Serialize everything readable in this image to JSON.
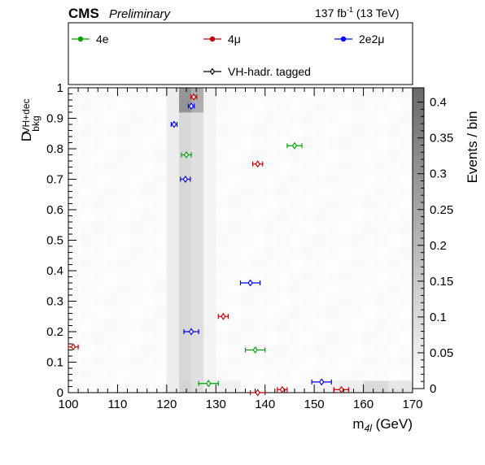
{
  "header": {
    "experiment": "CMS",
    "status": "Preliminary",
    "lumi_main": "137 fb",
    "lumi_exp": "-1",
    "lumi_energy": " (13 TeV)"
  },
  "legend": {
    "items": [
      {
        "label": "4e",
        "color": "#00a000",
        "marker": "filled-circle"
      },
      {
        "label": "4μ",
        "color": "#c00000",
        "marker": "filled-circle"
      },
      {
        "label": "2e2μ",
        "color": "#0000ff",
        "marker": "filled-circle"
      },
      {
        "label": "VH-hadr. tagged",
        "color": "#000000",
        "marker": "open-diamond"
      }
    ]
  },
  "chart_data": {
    "type": "heatmap",
    "xlabel_main": "m",
    "xlabel_sub": "4l",
    "xlabel_unit": " (GeV)",
    "ylabel_main": "D",
    "ylabel_sup": "VH+dec",
    "ylabel_sub": "bkg",
    "zlabel": "Events / bin",
    "xlim": [
      100,
      170
    ],
    "ylim": [
      0,
      1
    ],
    "zlim": [
      0,
      0.42
    ],
    "xticks": [
      "100",
      "110",
      "120",
      "130",
      "140",
      "150",
      "160",
      "170"
    ],
    "yticks": [
      "0",
      "0.1",
      "0.2",
      "0.3",
      "0.4",
      "0.5",
      "0.6",
      "0.7",
      "0.8",
      "0.9",
      "1"
    ],
    "zticks": [
      "0",
      "0.05",
      "0.1",
      "0.15",
      "0.2",
      "0.25",
      "0.3",
      "0.35",
      "0.4"
    ],
    "x_bin_edges": [
      100,
      102.5,
      105,
      107.5,
      110,
      112.5,
      115,
      117.5,
      120,
      122.5,
      125,
      127.5,
      130,
      132.5,
      135,
      137.5,
      140,
      142.5,
      145,
      147.5,
      150,
      152.5,
      155,
      157.5,
      160,
      162.5,
      165,
      167.5,
      170
    ],
    "y_bins": 25,
    "background_level": 0.01,
    "peak_bins": [
      {
        "x_range": [
          122.5,
          125
        ],
        "z": 0.11
      },
      {
        "x_range": [
          125,
          127.5
        ],
        "z": 0.09
      },
      {
        "x_range": [
          120,
          122.5
        ],
        "z": 0.05
      },
      {
        "x_range": [
          127.5,
          130
        ],
        "z": 0.03
      }
    ],
    "peak_enhance_y_ranges": [
      {
        "y_range": [
          0.9,
          1.0
        ],
        "z": 0.3
      },
      {
        "y_range": [
          0.0,
          0.04
        ],
        "z": 0.12
      }
    ],
    "bottom_row": [
      {
        "x_range": [
          130,
          135
        ],
        "z": 0.04
      },
      {
        "x_range": [
          150,
          155
        ],
        "z": 0.04
      },
      {
        "x_range": [
          155,
          160
        ],
        "z": 0.05
      },
      {
        "x_range": [
          160,
          165
        ],
        "z": 0.1
      },
      {
        "x_range": [
          165,
          170
        ],
        "z": 0.07
      }
    ],
    "series": [
      {
        "name": "4e",
        "color": "#00a000",
        "points": [
          {
            "x": 128.5,
            "y": 0.03,
            "xerr": 2.0
          },
          {
            "x": 138.0,
            "y": 0.14,
            "xerr": 2.0
          },
          {
            "x": 124.0,
            "y": 0.78,
            "xerr": 1.0
          },
          {
            "x": 146.0,
            "y": 0.81,
            "xerr": 1.5
          }
        ]
      },
      {
        "name": "4μ",
        "color": "#c00000",
        "points": [
          {
            "x": 101.0,
            "y": 0.15,
            "xerr": 1.0
          },
          {
            "x": 131.5,
            "y": 0.25,
            "xerr": 1.0
          },
          {
            "x": 138.5,
            "y": 0.75,
            "xerr": 1.0
          },
          {
            "x": 125.5,
            "y": 0.97,
            "xerr": 0.6
          },
          {
            "x": 138.5,
            "y": 0.0,
            "xerr": 1.5
          },
          {
            "x": 143.5,
            "y": 0.01,
            "xerr": 1.0
          },
          {
            "x": 155.5,
            "y": 0.01,
            "xerr": 1.5
          }
        ]
      },
      {
        "name": "2e2μ",
        "color": "#0000ff",
        "points": [
          {
            "x": 121.5,
            "y": 0.88,
            "xerr": 0.6
          },
          {
            "x": 125.0,
            "y": 0.94,
            "xerr": 0.6
          },
          {
            "x": 123.8,
            "y": 0.7,
            "xerr": 1.0
          },
          {
            "x": 137.0,
            "y": 0.36,
            "xerr": 2.0
          },
          {
            "x": 125.0,
            "y": 0.2,
            "xerr": 1.5
          },
          {
            "x": 151.5,
            "y": 0.035,
            "xerr": 2.0
          }
        ]
      }
    ]
  }
}
